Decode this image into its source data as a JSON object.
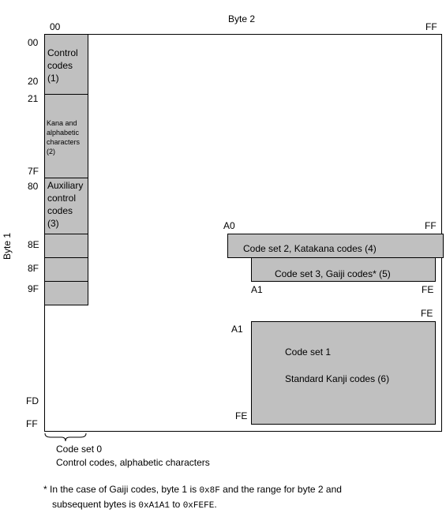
{
  "header": {
    "byte2_title": "Byte 2",
    "byte1_title": "Byte 1",
    "top_left_tick": "00",
    "top_right_tick": "FF"
  },
  "left_ticks": {
    "t00": "00",
    "t20": "20",
    "t21": "21",
    "t7f": "7F",
    "t80": "80",
    "t8e": "8E",
    "t8f": "8F",
    "t9f": "9F",
    "tfd": "FD",
    "tff": "FF"
  },
  "blocks": {
    "control_codes": [
      "Control",
      "codes",
      "(1)"
    ],
    "kana": [
      "Kana and",
      "alphabetic",
      "characters",
      "(2)"
    ],
    "aux_control": [
      "Auxiliary",
      "control",
      "codes",
      "(3)"
    ],
    "code_set_2": {
      "label": "Code set 2, Katakana codes (4)",
      "start": "A0",
      "end": "FF"
    },
    "code_set_3": {
      "label": "Code set 3, Gaiji codes* (5)",
      "start": "A1",
      "end": "FE"
    },
    "code_set_1": {
      "line1": "Code set 1",
      "line2": "Standard Kanji codes (6)",
      "col_start": "A1",
      "col_end": "FE",
      "row_end": "FE"
    }
  },
  "code_set_0": {
    "line1": "Code set 0",
    "line2": "Control codes, alphabetic characters"
  },
  "footnote": {
    "p1": "* In the case of Gaiji codes, byte 1 is ",
    "c1": "0x8F",
    "p2": " and the range for byte 2 and",
    "p3": "subsequent bytes is ",
    "c2": "0xA1A1",
    "p4": " to ",
    "c3": "0xFEFE",
    "p5": "."
  }
}
